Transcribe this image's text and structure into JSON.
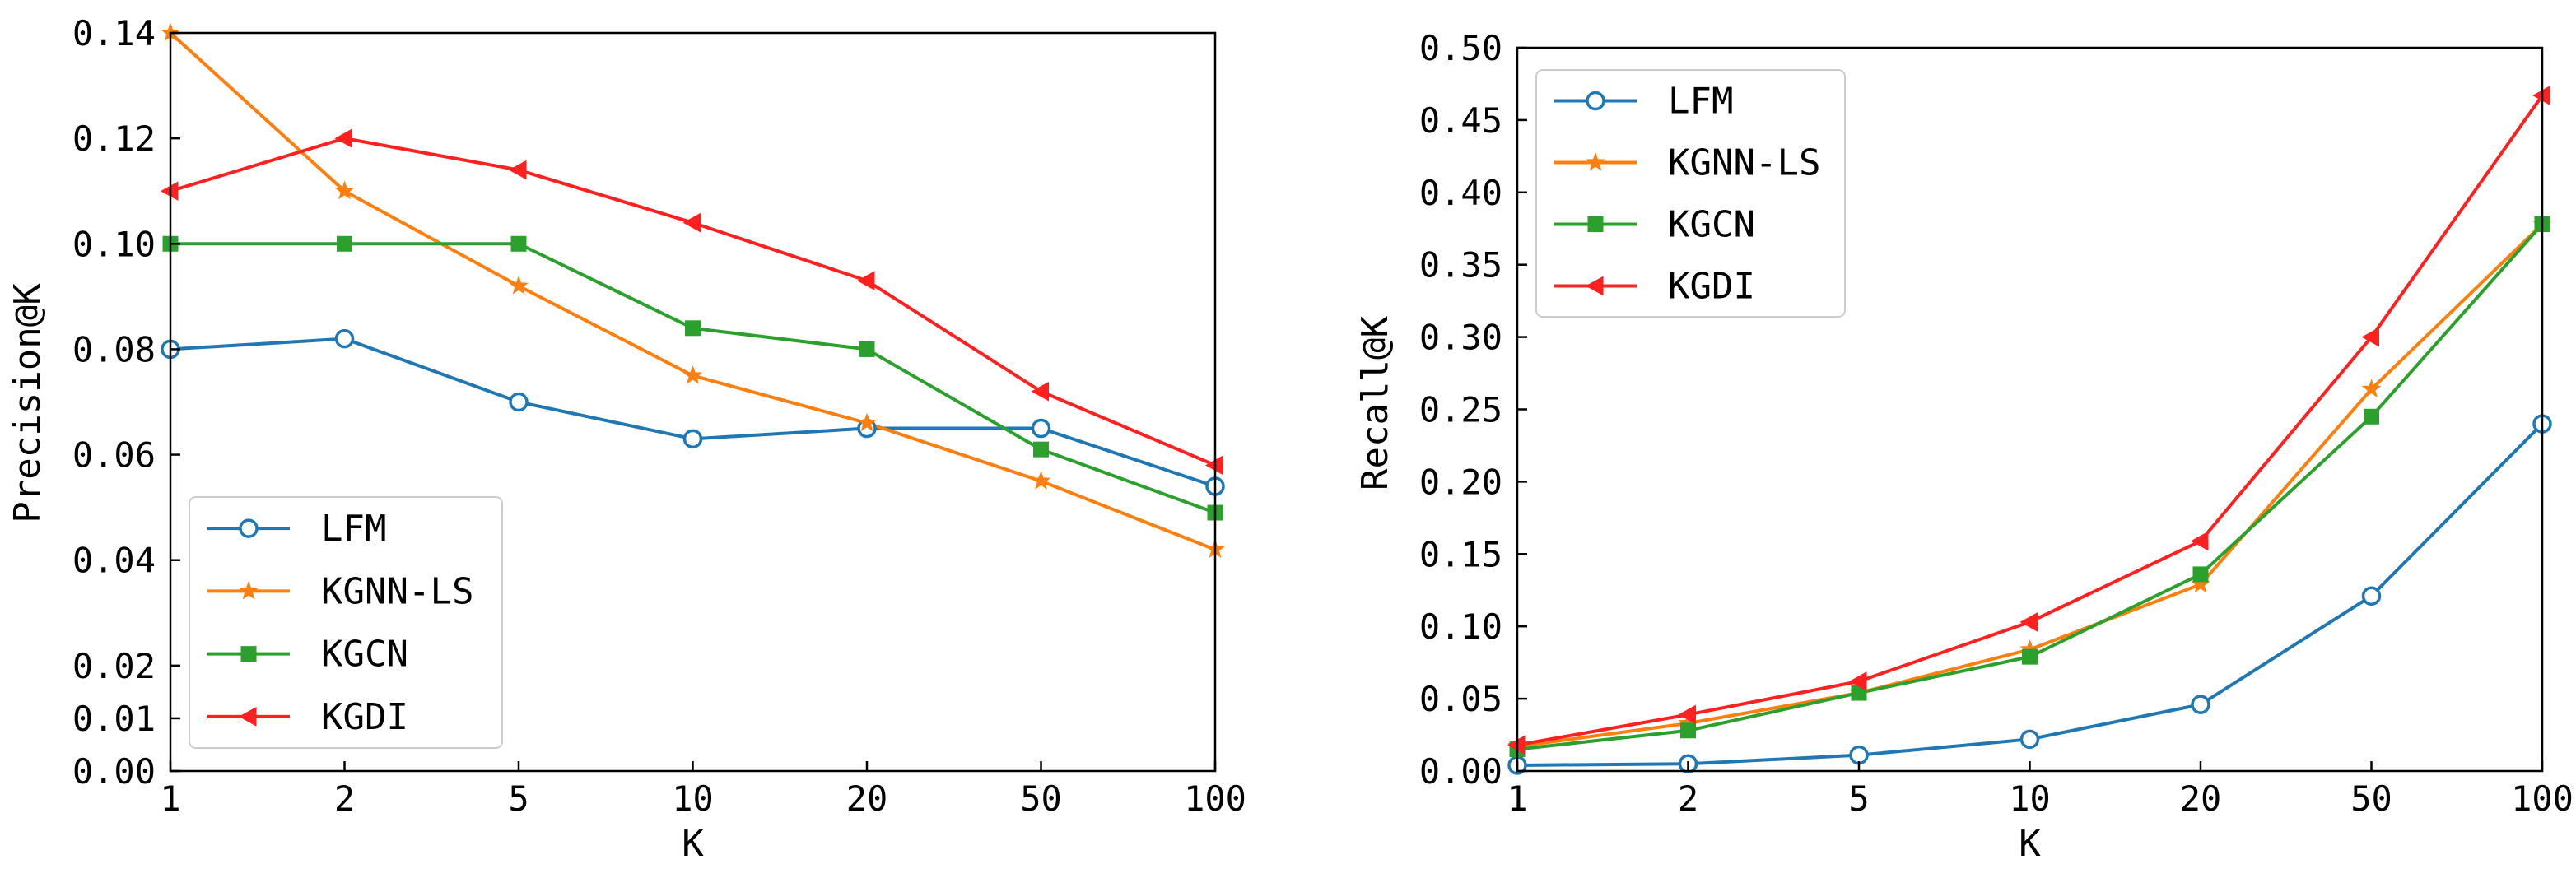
{
  "chart_data": [
    {
      "type": "line",
      "xlabel": "K",
      "ylabel": "Precision@K",
      "categories": [
        "1",
        "2",
        "5",
        "10",
        "20",
        "50",
        "100"
      ],
      "ylim": [
        0.0,
        0.14
      ],
      "yticks": [
        "0.00",
        "0.01",
        "0.02",
        "0.04",
        "0.06",
        "0.08",
        "0.10",
        "0.12",
        "0.14"
      ],
      "ytick_values": [
        0.0,
        0.01,
        0.02,
        0.04,
        0.06,
        0.08,
        0.1,
        0.12,
        0.14
      ],
      "legend_position": "lower-left",
      "series": [
        {
          "name": "LFM",
          "color": "#1f77b4",
          "marker": "circle-open",
          "values": [
            0.08,
            0.082,
            0.07,
            0.063,
            0.065,
            0.065,
            0.054
          ]
        },
        {
          "name": "KGNN-LS",
          "color": "#ff7f0e",
          "marker": "star",
          "values": [
            0.14,
            0.11,
            0.092,
            0.075,
            0.066,
            0.055,
            0.042
          ]
        },
        {
          "name": "KGCN",
          "color": "#2ca02c",
          "marker": "square",
          "values": [
            0.1,
            0.1,
            0.1,
            0.084,
            0.08,
            0.061,
            0.049
          ]
        },
        {
          "name": "KGDI",
          "color": "#ff2020",
          "marker": "triangle-left",
          "values": [
            0.11,
            0.12,
            0.114,
            0.104,
            0.093,
            0.072,
            0.058
          ]
        }
      ]
    },
    {
      "type": "line",
      "xlabel": "K",
      "ylabel": "Recall@K",
      "categories": [
        "1",
        "2",
        "5",
        "10",
        "20",
        "50",
        "100"
      ],
      "ylim": [
        0.0,
        0.5
      ],
      "yticks": [
        "0.00",
        "0.05",
        "0.10",
        "0.15",
        "0.20",
        "0.25",
        "0.30",
        "0.35",
        "0.40",
        "0.45",
        "0.50"
      ],
      "ytick_values": [
        0.0,
        0.05,
        0.1,
        0.15,
        0.2,
        0.25,
        0.3,
        0.35,
        0.4,
        0.45,
        0.5
      ],
      "legend_position": "upper-left",
      "series": [
        {
          "name": "LFM",
          "color": "#1f77b4",
          "marker": "circle-open",
          "values": [
            0.004,
            0.005,
            0.011,
            0.022,
            0.046,
            0.121,
            0.24
          ]
        },
        {
          "name": "KGNN-LS",
          "color": "#ff7f0e",
          "marker": "star",
          "values": [
            0.017,
            0.033,
            0.054,
            0.084,
            0.129,
            0.264,
            0.378
          ]
        },
        {
          "name": "KGCN",
          "color": "#2ca02c",
          "marker": "square",
          "values": [
            0.015,
            0.028,
            0.054,
            0.079,
            0.136,
            0.245,
            0.378
          ]
        },
        {
          "name": "KGDI",
          "color": "#ff2020",
          "marker": "triangle-left",
          "values": [
            0.018,
            0.039,
            0.062,
            0.103,
            0.159,
            0.3,
            0.467
          ]
        }
      ]
    }
  ]
}
